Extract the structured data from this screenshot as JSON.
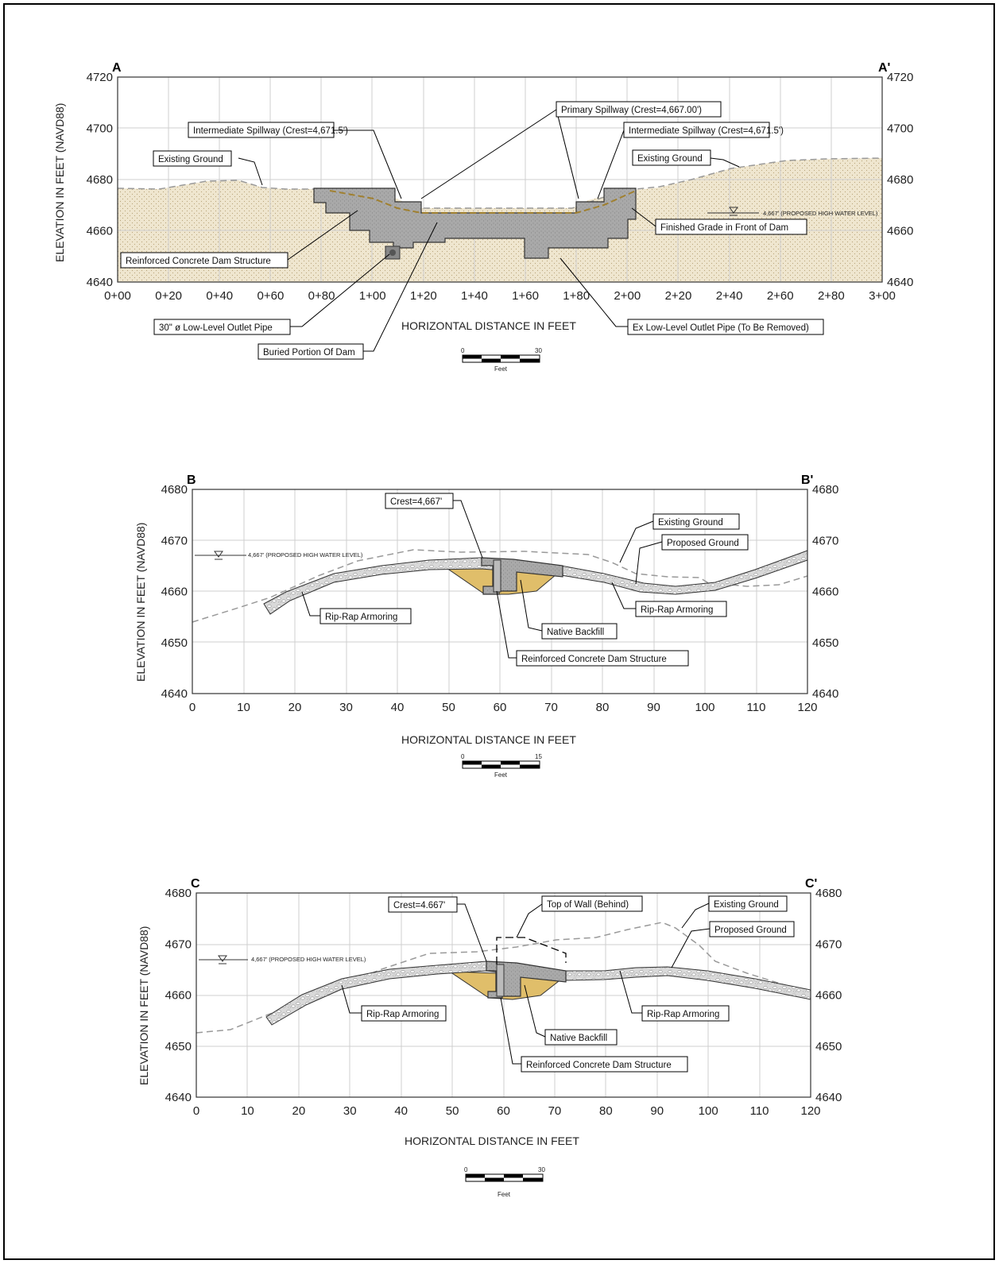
{
  "sections": [
    {
      "id": "A",
      "left_label": "A",
      "right_label": "A'",
      "ylabel": "ELEVATION IN FEET (NAVD88)",
      "xlabel": "HORIZONTAL DISTANCE IN FEET",
      "y_ticks": [
        "4720",
        "4700",
        "4680",
        "4660",
        "4640"
      ],
      "x_ticks": [
        "0+00",
        "0+20",
        "0+40",
        "0+60",
        "0+80",
        "1+00",
        "1+20",
        "1+40",
        "1+60",
        "1+80",
        "2+00",
        "2+20",
        "2+40",
        "2+60",
        "2+80",
        "3+00"
      ],
      "water_level": "4,667' (PROPOSED HIGH WATER LEVEL)",
      "callouts": {
        "intermediate_left": "Intermediate Spillway (Crest=4,671.5')",
        "primary": "Primary Spillway (Crest=4,667.00')",
        "intermediate_right": "Intermediate Spillway (Crest=4,671.5')",
        "existing_ground_left": "Existing Ground",
        "existing_ground_right": "Existing Ground",
        "finished_grade": "Finished Grade in Front of Dam",
        "reinforced": "Reinforced Concrete Dam Structure",
        "outlet_30": "30\" ø Low-Level Outlet Pipe",
        "buried": "Buried Portion Of Dam",
        "ex_outlet": "Ex Low-Level Outlet Pipe (To Be Removed)"
      },
      "scale": {
        "zero": "0",
        "max": "30",
        "unit": "Feet"
      }
    },
    {
      "id": "B",
      "left_label": "B",
      "right_label": "B'",
      "ylabel": "ELEVATION IN FEET (NAVD88)",
      "xlabel": "HORIZONTAL DISTANCE IN FEET",
      "y_ticks": [
        "4680",
        "4670",
        "4660",
        "4650",
        "4640"
      ],
      "x_ticks": [
        "0",
        "10",
        "20",
        "30",
        "40",
        "50",
        "60",
        "70",
        "80",
        "90",
        "100",
        "110",
        "120"
      ],
      "water_level": "4,667' (PROPOSED HIGH WATER LEVEL)",
      "callouts": {
        "crest": "Crest=4,667'",
        "existing_ground": "Existing Ground",
        "proposed_ground": "Proposed Ground",
        "riprap_left": "Rip-Rap Armoring",
        "riprap_right": "Rip-Rap Armoring",
        "native": "Native Backfill",
        "reinforced": "Reinforced Concrete Dam Structure"
      },
      "scale": {
        "zero": "0",
        "max": "15",
        "unit": "Feet"
      }
    },
    {
      "id": "C",
      "left_label": "C",
      "right_label": "C'",
      "ylabel": "ELEVATION IN FEET (NAVD88)",
      "xlabel": "HORIZONTAL DISTANCE IN FEET",
      "y_ticks": [
        "4680",
        "4670",
        "4660",
        "4650",
        "4640"
      ],
      "x_ticks": [
        "0",
        "10",
        "20",
        "30",
        "40",
        "50",
        "60",
        "70",
        "80",
        "90",
        "100",
        "110",
        "120"
      ],
      "water_level": "4,667' (PROPOSED HIGH WATER LEVEL)",
      "callouts": {
        "crest": "Crest=4.667'",
        "top_of_wall": "Top of Wall (Behind)",
        "existing_ground": "Existing Ground",
        "proposed_ground": "Proposed Ground",
        "riprap_left": "Rip-Rap Armoring",
        "riprap_right": "Rip-Rap Armoring",
        "native": "Native Backfill",
        "reinforced": "Reinforced Concrete Dam Structure"
      },
      "scale": {
        "zero": "0",
        "max": "30",
        "unit": "Feet"
      }
    }
  ]
}
